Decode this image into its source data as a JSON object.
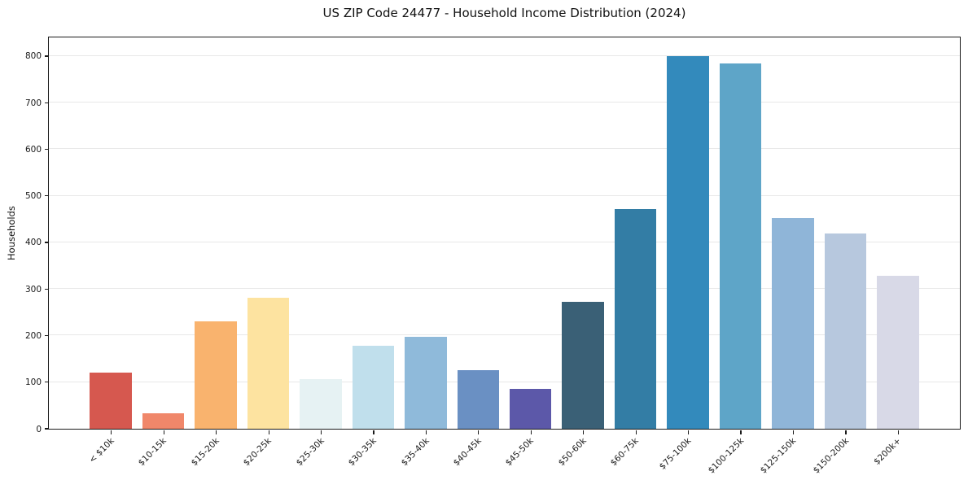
{
  "chart_data": {
    "type": "bar",
    "title": "US ZIP Code 24477 - Household Income Distribution (2024)",
    "xlabel": "",
    "ylabel": "Households",
    "ylim": [
      0,
      840
    ],
    "yticks": [
      0,
      100,
      200,
      300,
      400,
      500,
      600,
      700,
      800
    ],
    "grid": "horizontal",
    "legend": "none",
    "categories": [
      "< $10k",
      "$10-15k",
      "$15-20k",
      "$20-25k",
      "$25-30k",
      "$30-35k",
      "$35-40k",
      "$40-45k",
      "$45-50k",
      "$50-60k",
      "$60-75k",
      "$75-100k",
      "$100-125k",
      "$125-150k",
      "$150-200k",
      "$200k+"
    ],
    "values": [
      120,
      33,
      231,
      282,
      107,
      179,
      197,
      126,
      85,
      272,
      472,
      799,
      785,
      452,
      419,
      329
    ],
    "bar_colors": [
      "#d6584f",
      "#f0876a",
      "#f9b36e",
      "#fde3a0",
      "#e6f2f3",
      "#c0dfec",
      "#8fbada",
      "#6a90c3",
      "#5c58a9",
      "#3a6076",
      "#337da5",
      "#338abc",
      "#5ea5c8",
      "#8fb5d8",
      "#b7c8de",
      "#d8d9e7"
    ]
  },
  "palette": {
    "background": "#ffffff",
    "grid": "#e8e8e8",
    "spine": "#1a1a1a",
    "text": "#191919"
  }
}
